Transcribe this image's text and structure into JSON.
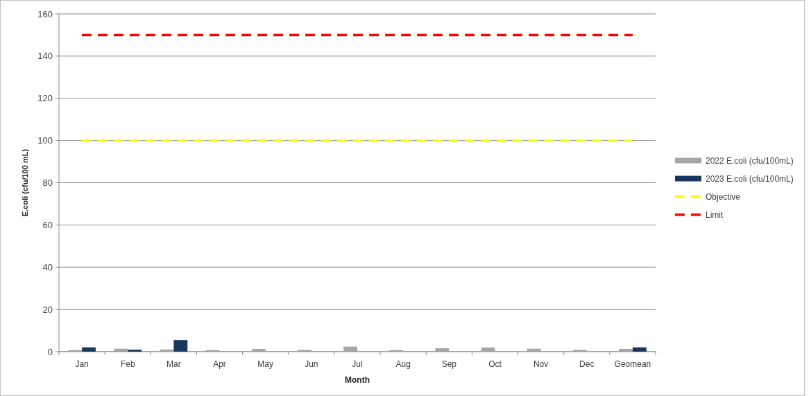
{
  "chart_data": {
    "type": "bar",
    "xlabel": "Month",
    "ylabel": "E.coli (cfu/100 mL)",
    "categories": [
      "Jan",
      "Feb",
      "Mar",
      "Apr",
      "May",
      "Jun",
      "Jul",
      "Aug",
      "Sep",
      "Oct",
      "Nov",
      "Dec",
      "Geomean"
    ],
    "series": [
      {
        "name": "2022 E.coli (cfu/100mL)",
        "color": "#a6a6a6",
        "values": [
          0.7,
          1.4,
          1.0,
          0.7,
          1.3,
          0.8,
          2.4,
          0.7,
          1.6,
          1.9,
          1.4,
          0.8,
          1.3
        ]
      },
      {
        "name": "2023 E.coli (cfu/100mL)",
        "color": "#17375e",
        "values": [
          2.0,
          0.9,
          5.5,
          null,
          null,
          null,
          null,
          null,
          null,
          null,
          null,
          null,
          2.0
        ]
      },
      {
        "name": "Objective",
        "type": "line",
        "color": "#ffff00",
        "line_style": "dashed",
        "values": [
          100,
          100,
          100,
          100,
          100,
          100,
          100,
          100,
          100,
          100,
          100,
          100,
          100
        ]
      },
      {
        "name": "Limit",
        "type": "line",
        "color": "#ff0000",
        "line_style": "dashed",
        "values": [
          150,
          150,
          150,
          150,
          150,
          150,
          150,
          150,
          150,
          150,
          150,
          150,
          150
        ]
      }
    ],
    "ylim": [
      0,
      160
    ],
    "yticks": [
      0,
      20,
      40,
      60,
      80,
      100,
      120,
      140,
      160
    ],
    "grid": "y",
    "legend": "right",
    "marker": "none"
  }
}
